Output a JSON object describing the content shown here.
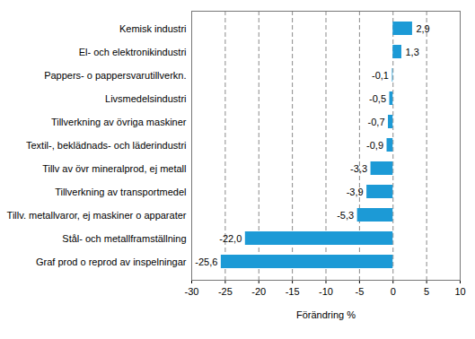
{
  "chart_data": {
    "type": "bar",
    "orientation": "horizontal",
    "categories": [
      "Kemisk industri",
      "El- och elektronikindustri",
      "Pappers- o pappersvarutillverkn.",
      "Livsmedelsindustri",
      "Tillverkning av övriga maskiner",
      "Textil-, beklädnads- och läderindustri",
      "Tillv av övr mineralprod, ej metall",
      "Tillverkning av transportmedel",
      "Tillv. metallvaror, ej maskiner o apparater",
      "Stål- och metallframställning",
      "Graf prod o reprod av inspelningar"
    ],
    "values": [
      2.9,
      1.3,
      -0.1,
      -0.5,
      -0.7,
      -0.9,
      -3.3,
      -3.9,
      -5.3,
      -22.0,
      -25.6
    ],
    "value_labels": [
      "2,9",
      "1,3",
      "-0,1",
      "-0,5",
      "-0,7",
      "-0,9",
      "-3,3",
      "-3,9",
      "-5,3",
      "-22,0",
      "-25,6"
    ],
    "data_labels": true,
    "xlabel": "Förändring %",
    "xlim": [
      -30,
      10
    ],
    "xticks": [
      -30,
      -25,
      -20,
      -15,
      -10,
      -5,
      0,
      5,
      10
    ],
    "grid": true,
    "color": "#1c9ad6"
  }
}
